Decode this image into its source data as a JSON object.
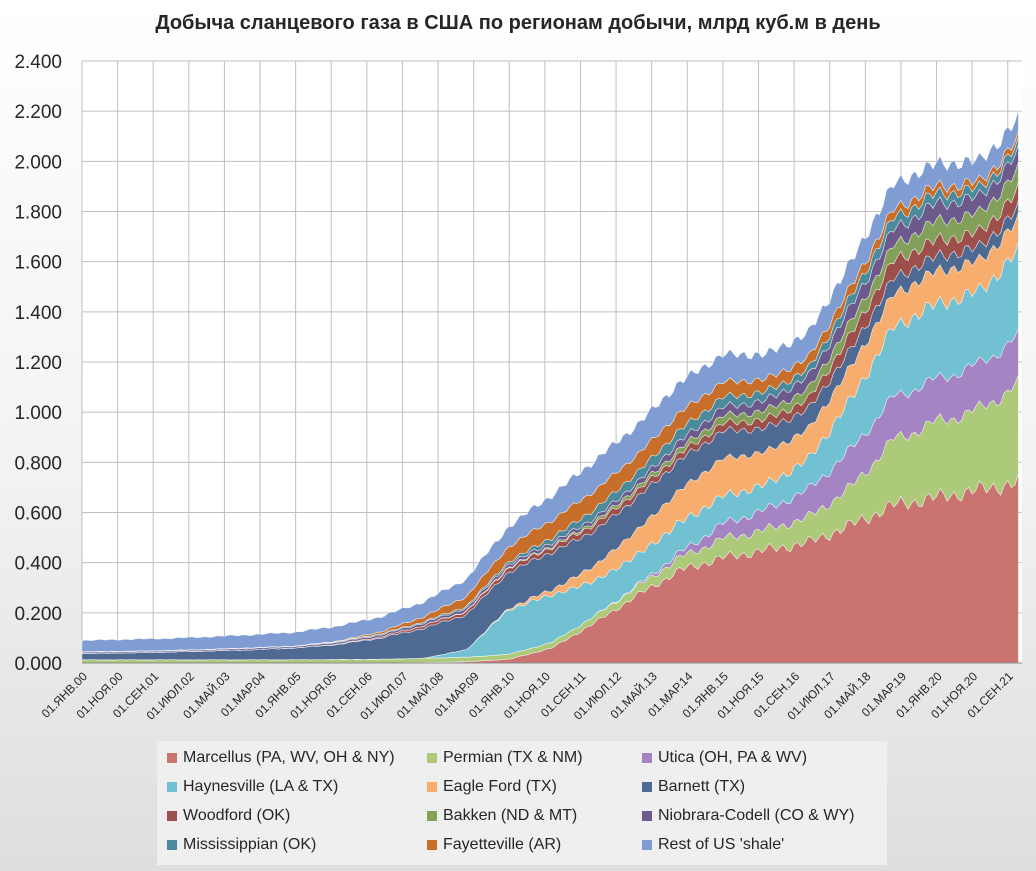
{
  "chart_data": {
    "type": "area",
    "stacked": true,
    "title": "Добыча сланцевого газа в США по регионам добычи, млрд куб.м в день",
    "ylim": [
      0,
      2.4
    ],
    "y_tick_values": [
      0,
      0.2,
      0.4,
      0.6,
      0.8,
      1.0,
      1.2,
      1.4,
      1.6,
      1.8,
      2.0,
      2.2,
      2.4
    ],
    "y_tick_labels": [
      "0.000",
      "0.200",
      "0.400",
      "0.600",
      "0.800",
      "1.000",
      "1.200",
      "1.400",
      "1.600",
      "1.800",
      "2.000",
      "2.200",
      "2.400"
    ],
    "grid": true,
    "legend_position": "bottom",
    "x_tick_labels": [
      "01.ЯНВ.00",
      "01.НОЯ.00",
      "01.СЕН.01",
      "01.ИЮЛ.02",
      "01.МАЙ.03",
      "01.МАР.04",
      "01.ЯНВ.05",
      "01.НОЯ.05",
      "01.СЕН.06",
      "01.ИЮЛ.07",
      "01.МАЙ.08",
      "01.МАР.09",
      "01.ЯНВ.10",
      "01.НОЯ.10",
      "01.СЕН.11",
      "01.ИЮЛ.12",
      "01.МАЙ.13",
      "01.МАР.14",
      "01.ЯНВ.15",
      "01.НОЯ.15",
      "01.СЕН.16",
      "01.ИЮЛ.17",
      "01.МАЙ.18",
      "01.МАР.19",
      "01.ЯНВ.20",
      "01.НОЯ.20",
      "01.СЕН.21"
    ],
    "x": [
      "2000-01",
      "2001-01",
      "2002-01",
      "2003-01",
      "2004-01",
      "2005-01",
      "2006-01",
      "2007-01",
      "2008-01",
      "2009-01",
      "2010-01",
      "2011-01",
      "2012-01",
      "2013-01",
      "2014-01",
      "2015-01",
      "2016-01",
      "2017-01",
      "2018-01",
      "2019-01",
      "2020-01",
      "2021-01",
      "2021-12"
    ],
    "series": [
      {
        "name": "Marcellus (PA, WV, OH & NY)",
        "color": "#c97470",
        "values": [
          0,
          0,
          0,
          0,
          0,
          0,
          0,
          0,
          0.002,
          0.005,
          0.015,
          0.06,
          0.16,
          0.27,
          0.37,
          0.42,
          0.45,
          0.48,
          0.55,
          0.63,
          0.66,
          0.69,
          0.72
        ]
      },
      {
        "name": "Permian (TX & NM)",
        "color": "#adc97a",
        "values": [
          0.013,
          0.013,
          0.013,
          0.013,
          0.013,
          0.013,
          0.014,
          0.015,
          0.017,
          0.018,
          0.02,
          0.022,
          0.027,
          0.035,
          0.05,
          0.075,
          0.08,
          0.1,
          0.15,
          0.26,
          0.3,
          0.32,
          0.39
        ]
      },
      {
        "name": "Utica (OH, PA & WV)",
        "color": "#a484c2",
        "values": [
          0,
          0,
          0,
          0,
          0,
          0,
          0,
          0,
          0,
          0,
          0,
          0,
          0,
          0.005,
          0.02,
          0.06,
          0.08,
          0.11,
          0.15,
          0.17,
          0.17,
          0.18,
          0.19
        ]
      },
      {
        "name": "Haynesville (LA & TX)",
        "color": "#72c1d2",
        "values": [
          0,
          0,
          0,
          0,
          0,
          0,
          0,
          0,
          0,
          0.03,
          0.18,
          0.19,
          0.14,
          0.12,
          0.12,
          0.11,
          0.1,
          0.12,
          0.2,
          0.28,
          0.3,
          0.29,
          0.34
        ]
      },
      {
        "name": "Eagle Ford (TX)",
        "color": "#f6ad6e",
        "values": [
          0,
          0,
          0,
          0,
          0,
          0,
          0,
          0,
          0,
          0,
          0.005,
          0.02,
          0.06,
          0.1,
          0.13,
          0.15,
          0.13,
          0.12,
          0.13,
          0.13,
          0.13,
          0.12,
          0.12
        ]
      },
      {
        "name": "Barnett (TX)",
        "color": "#4e6a92",
        "values": [
          0.025,
          0.027,
          0.03,
          0.035,
          0.04,
          0.047,
          0.06,
          0.085,
          0.12,
          0.14,
          0.145,
          0.15,
          0.14,
          0.13,
          0.12,
          0.11,
          0.095,
          0.08,
          0.07,
          0.065,
          0.06,
          0.055,
          0.05
        ]
      },
      {
        "name": "Woodford (OK)",
        "color": "#9c4f4b",
        "values": [
          0,
          0,
          0,
          0,
          0,
          0,
          0.002,
          0.005,
          0.01,
          0.013,
          0.017,
          0.02,
          0.025,
          0.025,
          0.025,
          0.03,
          0.035,
          0.04,
          0.06,
          0.07,
          0.065,
          0.06,
          0.07
        ]
      },
      {
        "name": "Bakken (ND & MT)",
        "color": "#82a05a",
        "values": [
          0,
          0,
          0,
          0,
          0,
          0,
          0,
          0,
          0.001,
          0.002,
          0.003,
          0.005,
          0.01,
          0.015,
          0.02,
          0.03,
          0.035,
          0.04,
          0.05,
          0.06,
          0.075,
          0.075,
          0.08
        ]
      },
      {
        "name": "Niobrara-Codell (CO & WY)",
        "color": "#6c5a8c",
        "values": [
          0.005,
          0.005,
          0.005,
          0.005,
          0.006,
          0.006,
          0.007,
          0.008,
          0.01,
          0.012,
          0.012,
          0.013,
          0.015,
          0.02,
          0.03,
          0.035,
          0.04,
          0.05,
          0.06,
          0.065,
          0.07,
          0.065,
          0.07
        ]
      },
      {
        "name": "Mississippian (OK)",
        "color": "#4a8a9c",
        "values": [
          0.002,
          0.002,
          0.002,
          0.002,
          0.002,
          0.002,
          0.003,
          0.004,
          0.005,
          0.006,
          0.01,
          0.02,
          0.035,
          0.04,
          0.045,
          0.04,
          0.035,
          0.03,
          0.04,
          0.045,
          0.04,
          0.035,
          0.03
        ]
      },
      {
        "name": "Fayetteville (AR)",
        "color": "#c76e2a",
        "values": [
          0,
          0,
          0,
          0,
          0,
          0,
          0.002,
          0.008,
          0.02,
          0.04,
          0.06,
          0.07,
          0.075,
          0.07,
          0.07,
          0.06,
          0.05,
          0.045,
          0.04,
          0.035,
          0.03,
          0.025,
          0.025
        ]
      },
      {
        "name": "Rest of US 'shale'",
        "color": "#7f9dd3",
        "values": [
          0.045,
          0.047,
          0.048,
          0.05,
          0.052,
          0.055,
          0.06,
          0.06,
          0.06,
          0.07,
          0.08,
          0.1,
          0.12,
          0.12,
          0.12,
          0.11,
          0.1,
          0.1,
          0.1,
          0.1,
          0.09,
          0.085,
          0.08
        ]
      }
    ]
  }
}
